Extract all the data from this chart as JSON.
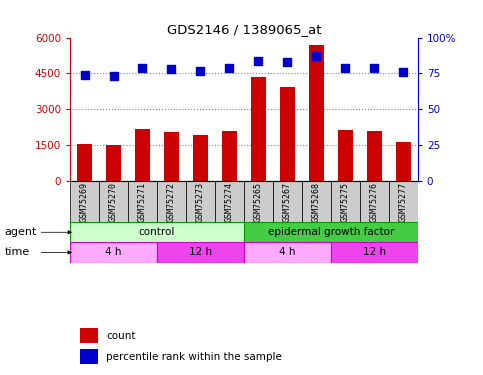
{
  "title": "GDS2146 / 1389065_at",
  "samples": [
    "GSM75269",
    "GSM75270",
    "GSM75271",
    "GSM75272",
    "GSM75273",
    "GSM75274",
    "GSM75265",
    "GSM75267",
    "GSM75268",
    "GSM75275",
    "GSM75276",
    "GSM75277"
  ],
  "counts": [
    1550,
    1500,
    2200,
    2050,
    1950,
    2100,
    4350,
    3950,
    5700,
    2150,
    2100,
    1650
  ],
  "percentiles": [
    74,
    73,
    79,
    78,
    77,
    79,
    84,
    83,
    87,
    79,
    79,
    76
  ],
  "bar_color": "#cc0000",
  "dot_color": "#0000cc",
  "ylim_left": [
    0,
    6000
  ],
  "ylim_right": [
    0,
    100
  ],
  "yticks_left": [
    0,
    1500,
    3000,
    4500,
    6000
  ],
  "yticks_right": [
    0,
    25,
    50,
    75,
    100
  ],
  "ytick_labels_right": [
    "0",
    "25",
    "50",
    "75",
    "100%"
  ],
  "grid_values": [
    1500,
    3000,
    4500
  ],
  "agent_groups": [
    {
      "text": "control",
      "start": 0,
      "end": 6,
      "color": "#ccffcc",
      "border": "#009900"
    },
    {
      "text": "epidermal growth factor",
      "start": 6,
      "end": 12,
      "color": "#44cc44",
      "border": "#009900"
    }
  ],
  "time_groups": [
    {
      "text": "4 h",
      "start": 0,
      "end": 3,
      "color": "#ffaaff",
      "border": "#cc00cc"
    },
    {
      "text": "12 h",
      "start": 3,
      "end": 6,
      "color": "#ee44ee",
      "border": "#cc00cc"
    },
    {
      "text": "4 h",
      "start": 6,
      "end": 9,
      "color": "#ffaaff",
      "border": "#cc00cc"
    },
    {
      "text": "12 h",
      "start": 9,
      "end": 12,
      "color": "#ee44ee",
      "border": "#cc00cc"
    }
  ],
  "agent_label": "agent",
  "time_label": "time",
  "legend_items": [
    {
      "label": "count",
      "color": "#cc0000"
    },
    {
      "label": "percentile rank within the sample",
      "color": "#0000cc"
    }
  ],
  "bg_color": "#ffffff",
  "tick_color_left": "#cc0000",
  "tick_color_right": "#0000cc",
  "sample_bg": "#cccccc",
  "bar_width": 0.5,
  "dot_size": 35
}
